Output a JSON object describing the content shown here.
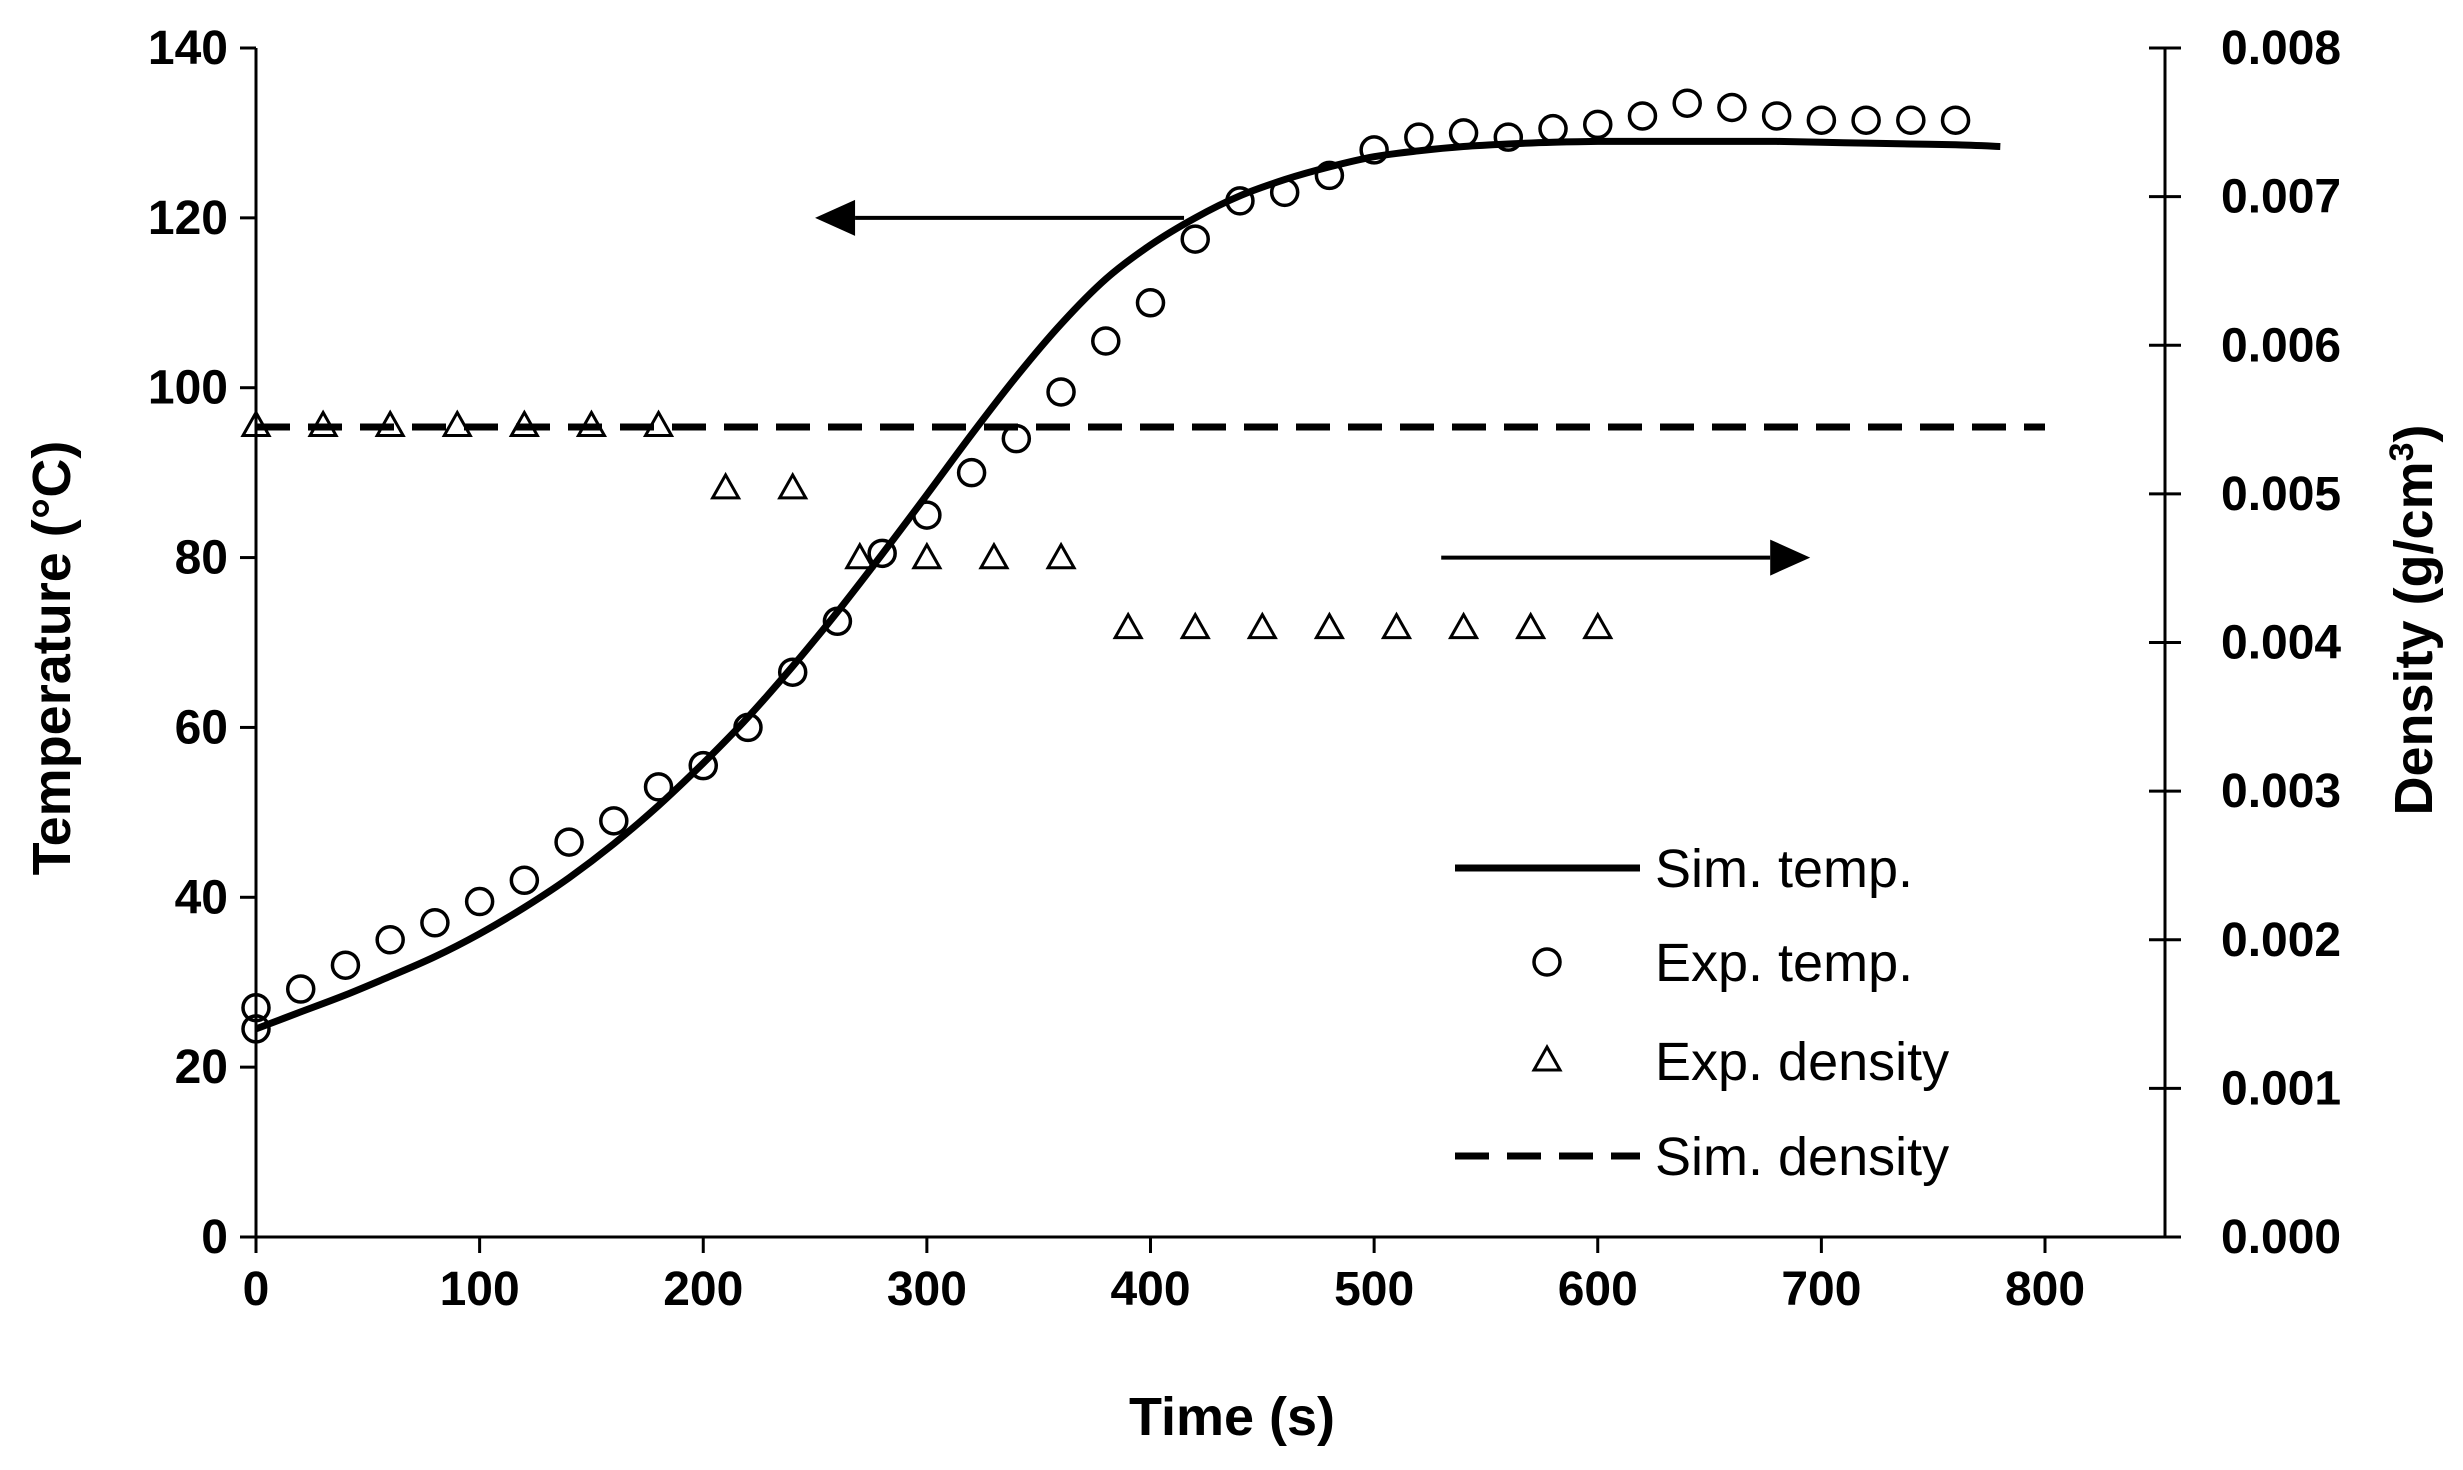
{
  "chart_data": {
    "type": "scatter",
    "xlabel": "Time (s)",
    "ylabel_left": "Temperature (°C)",
    "ylabel_right_base": "Density (g/cm",
    "ylabel_right_sup": "3",
    "ylabel_right_close": ")",
    "xlim": [
      0,
      800
    ],
    "ylim_left": [
      0,
      140
    ],
    "ylim_right": [
      0,
      0.008
    ],
    "x_ticks": [
      "0",
      "100",
      "200",
      "300",
      "400",
      "500",
      "600",
      "700",
      "800"
    ],
    "y_left_ticks": [
      "0",
      "20",
      "40",
      "60",
      "80",
      "100",
      "120",
      "140"
    ],
    "y_right_ticks": [
      "0.000",
      "0.001",
      "0.002",
      "0.003",
      "0.004",
      "0.005",
      "0.006",
      "0.007",
      "0.008"
    ],
    "grid": false,
    "legend_position": "bottom-right",
    "legend": [
      "Sim. temp.",
      "Exp. temp.",
      "Exp. density",
      "Sim. density"
    ],
    "series": [
      {
        "name": "Sim. temp.",
        "axis": "left",
        "style": "solid-line",
        "x": [
          0,
          20,
          40,
          60,
          80,
          100,
          120,
          140,
          160,
          180,
          200,
          220,
          240,
          260,
          280,
          300,
          320,
          340,
          360,
          380,
          400,
          420,
          440,
          460,
          480,
          500,
          520,
          540,
          560,
          580,
          600,
          620,
          640,
          660,
          680,
          700,
          720,
          740,
          760,
          780
        ],
        "y": [
          24.5,
          26.5,
          28.5,
          30.7,
          33,
          35.7,
          38.8,
          42.3,
          46.3,
          50.8,
          55.8,
          61.2,
          67.2,
          73.6,
          80.4,
          87.4,
          94.5,
          101.3,
          107.5,
          112.8,
          116.8,
          120,
          122.6,
          124.5,
          126,
          127.2,
          127.9,
          128.4,
          128.7,
          128.9,
          129,
          129,
          129,
          129,
          129,
          128.9,
          128.8,
          128.7,
          128.6,
          128.4
        ]
      },
      {
        "name": "Exp. temp.",
        "axis": "left",
        "style": "open-circle",
        "x": [
          0,
          0,
          20,
          40,
          60,
          80,
          100,
          120,
          140,
          160,
          180,
          200,
          220,
          240,
          260,
          280,
          300,
          320,
          340,
          360,
          380,
          400,
          420,
          440,
          460,
          480,
          500,
          520,
          540,
          560,
          580,
          600,
          620,
          640,
          660,
          680,
          700,
          720,
          740,
          760
        ],
        "y": [
          24.5,
          27,
          29.2,
          32,
          35,
          37,
          39.5,
          42,
          46.5,
          49,
          53,
          55.5,
          60,
          66.5,
          72.5,
          80.5,
          85,
          90,
          94,
          99.5,
          105.5,
          110,
          117.5,
          122,
          123,
          125,
          128,
          129.5,
          130,
          129.5,
          130.5,
          131,
          132,
          133.5,
          133,
          132,
          131.5,
          131.5,
          131.5,
          131.5
        ]
      },
      {
        "name": "Exp. density",
        "axis": "right",
        "style": "open-triangle",
        "x": [
          0,
          30,
          60,
          90,
          120,
          150,
          180,
          210,
          240,
          270,
          300,
          330,
          360,
          390,
          420,
          450,
          480,
          510,
          540,
          570,
          600
        ],
        "y": [
          0.00546,
          0.00546,
          0.00546,
          0.00546,
          0.00546,
          0.00546,
          0.00546,
          0.00504,
          0.00504,
          0.00457,
          0.00457,
          0.00457,
          0.00457,
          0.0041,
          0.0041,
          0.0041,
          0.0041,
          0.0041,
          0.0041,
          0.0041,
          0.0041
        ]
      },
      {
        "name": "Sim. density",
        "axis": "right",
        "style": "dashed-line",
        "x": [
          0,
          800
        ],
        "y": [
          0.00545,
          0.00545
        ]
      }
    ],
    "annotations": [
      {
        "type": "arrow",
        "direction": "left",
        "points_to": "left axis",
        "x_from": 415,
        "x_to": 250,
        "y_left": 120
      },
      {
        "type": "arrow",
        "direction": "right",
        "points_to": "right axis",
        "x_from": 530,
        "x_to": 695,
        "y_left": 80
      }
    ]
  }
}
